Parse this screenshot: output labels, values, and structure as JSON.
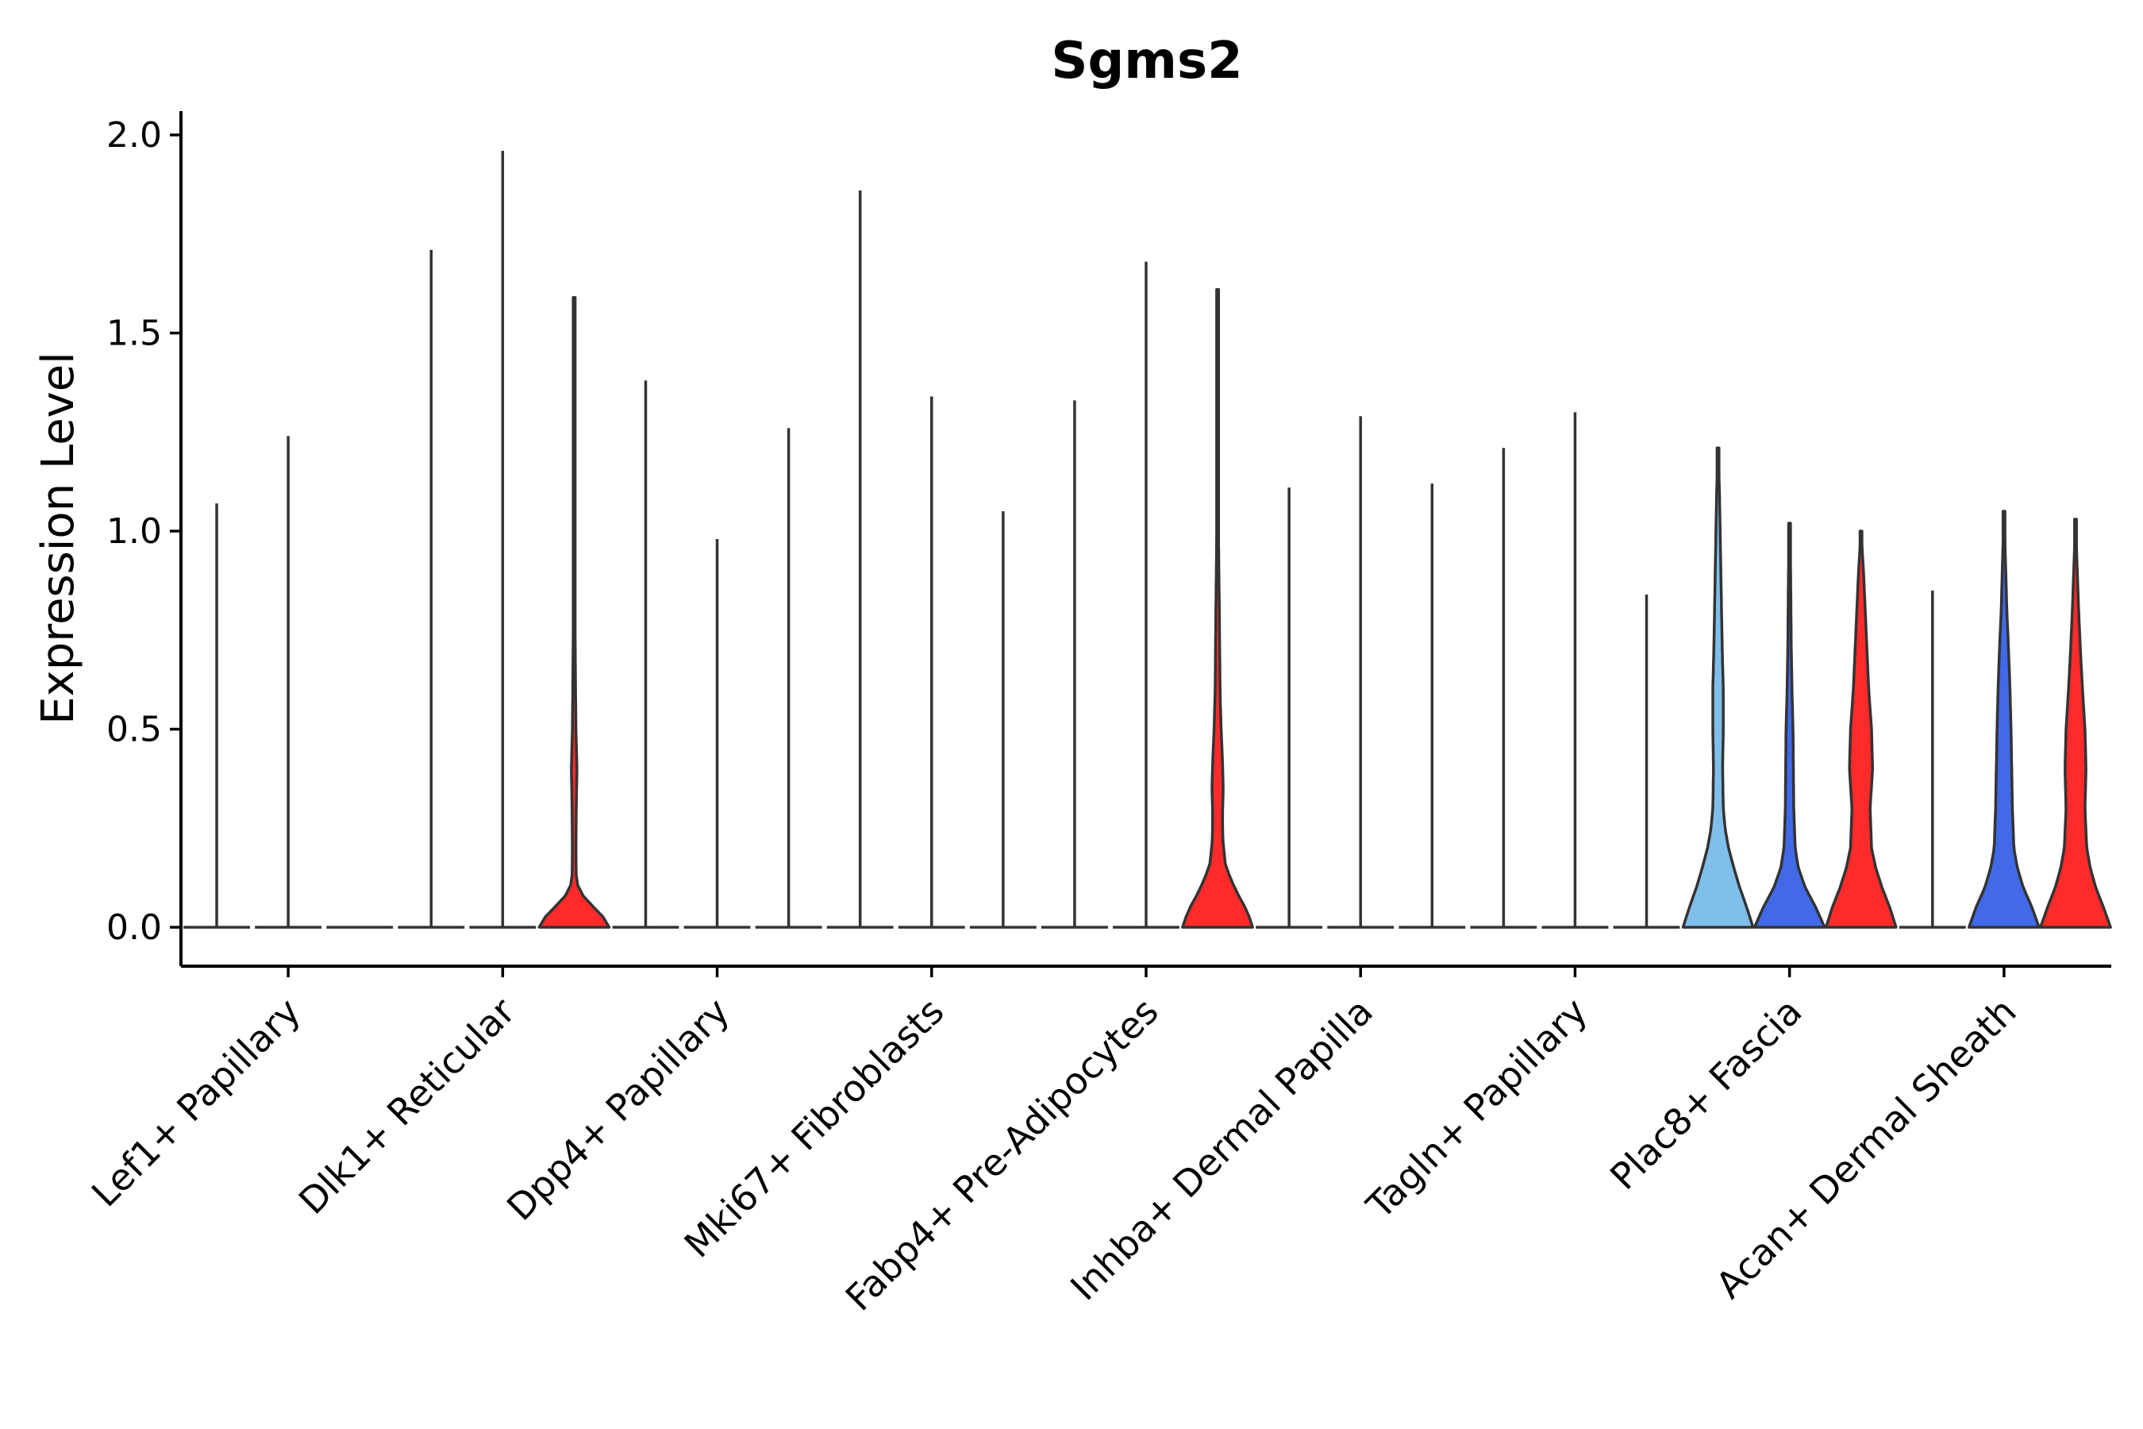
{
  "chart_data": {
    "type": "violin",
    "title": "Sgms2",
    "xlabel": "",
    "ylabel": "Expression Level",
    "ylim": [
      -0.1,
      2.06
    ],
    "yticks": [
      0.0,
      0.5,
      1.0,
      1.5,
      2.0
    ],
    "ytick_labels": [
      "0.0",
      "0.5",
      "1.0",
      "1.5",
      "2.0"
    ],
    "grid": false,
    "legend": "none",
    "series_colors": {
      "a": "#7fbfea",
      "b": "#4169e8",
      "c": "#ff2a2a"
    },
    "categories": [
      {
        "label": "Lef1+ Papillary",
        "violins": [
          {
            "max": 1.07,
            "width": 0.55,
            "dens": [
              [
                0,
                1
              ]
            ],
            "fill": null
          },
          {
            "max": 1.24,
            "width": 0.55,
            "dens": [
              [
                0,
                1
              ]
            ],
            "fill": null
          },
          {
            "max": 0.0,
            "width": 0.55,
            "dens": [
              [
                0,
                1
              ]
            ],
            "fill": null
          }
        ]
      },
      {
        "label": "Dlk1+ Reticular",
        "violins": [
          {
            "max": 1.71,
            "width": 0.55,
            "dens": [
              [
                0,
                1
              ]
            ],
            "fill": null
          },
          {
            "max": 1.96,
            "width": 0.55,
            "dens": [
              [
                0,
                1
              ]
            ],
            "fill": null
          },
          {
            "max": 1.59,
            "width": 1.0,
            "dens": [
              [
                0,
                1
              ],
              [
                0.03,
                0.8
              ],
              [
                0.06,
                0.45
              ],
              [
                0.09,
                0.15
              ],
              [
                0.12,
                0.06
              ],
              [
                0.2,
                0.05
              ],
              [
                0.3,
                0.06
              ],
              [
                0.4,
                0.08
              ],
              [
                0.5,
                0.05
              ],
              [
                0.7,
                0.03
              ],
              [
                0.9,
                0.02
              ],
              [
                1.2,
                0.01
              ],
              [
                1.59,
                0
              ]
            ],
            "fill": "#ff2a2a"
          }
        ]
      },
      {
        "label": "Dpp4+ Papillary",
        "violins": [
          {
            "max": 1.38,
            "width": 0.55,
            "dens": [
              [
                0,
                1
              ]
            ],
            "fill": null
          },
          {
            "max": 0.98,
            "width": 0.55,
            "dens": [
              [
                0,
                1
              ]
            ],
            "fill": null
          },
          {
            "max": 1.26,
            "width": 0.55,
            "dens": [
              [
                0,
                1
              ]
            ],
            "fill": null
          }
        ]
      },
      {
        "label": "Mki67+ Fibroblasts",
        "violins": [
          {
            "max": 1.86,
            "width": 0.55,
            "dens": [
              [
                0,
                1
              ]
            ],
            "fill": null
          },
          {
            "max": 1.34,
            "width": 0.55,
            "dens": [
              [
                0,
                1
              ]
            ],
            "fill": null
          },
          {
            "max": 1.05,
            "width": 0.55,
            "dens": [
              [
                0,
                1
              ]
            ],
            "fill": null
          }
        ]
      },
      {
        "label": "Fabp4+ Pre-Adipocytes",
        "violins": [
          {
            "max": 1.33,
            "width": 0.55,
            "dens": [
              [
                0,
                1
              ]
            ],
            "fill": null
          },
          {
            "max": 1.68,
            "width": 0.55,
            "dens": [
              [
                0,
                1
              ]
            ],
            "fill": null
          },
          {
            "max": 1.61,
            "width": 1.0,
            "dens": [
              [
                0,
                1
              ],
              [
                0.04,
                0.85
              ],
              [
                0.08,
                0.6
              ],
              [
                0.12,
                0.38
              ],
              [
                0.16,
                0.22
              ],
              [
                0.22,
                0.15
              ],
              [
                0.28,
                0.14
              ],
              [
                0.35,
                0.16
              ],
              [
                0.42,
                0.14
              ],
              [
                0.5,
                0.1
              ],
              [
                0.6,
                0.07
              ],
              [
                0.8,
                0.05
              ],
              [
                0.95,
                0.03
              ],
              [
                1.2,
                0.01
              ],
              [
                1.61,
                0
              ]
            ],
            "fill": "#ff2a2a"
          }
        ]
      },
      {
        "label": "Inhba+ Dermal Papilla",
        "violins": [
          {
            "max": 1.11,
            "width": 0.55,
            "dens": [
              [
                0,
                1
              ]
            ],
            "fill": null
          },
          {
            "max": 1.29,
            "width": 0.55,
            "dens": [
              [
                0,
                1
              ]
            ],
            "fill": null
          },
          {
            "max": 1.12,
            "width": 0.55,
            "dens": [
              [
                0,
                1
              ]
            ],
            "fill": null
          }
        ]
      },
      {
        "label": "Tagln+ Papillary",
        "violins": [
          {
            "max": 1.21,
            "width": 0.55,
            "dens": [
              [
                0,
                1
              ]
            ],
            "fill": null
          },
          {
            "max": 1.3,
            "width": 0.55,
            "dens": [
              [
                0,
                1
              ]
            ],
            "fill": null
          },
          {
            "max": 0.84,
            "width": 0.55,
            "dens": [
              [
                0,
                1
              ]
            ],
            "fill": null
          }
        ]
      },
      {
        "label": "Plac8+ Fascia",
        "violins": [
          {
            "max": 1.21,
            "width": 1.0,
            "dens": [
              [
                0,
                1
              ],
              [
                0.05,
                0.82
              ],
              [
                0.1,
                0.62
              ],
              [
                0.15,
                0.45
              ],
              [
                0.2,
                0.3
              ],
              [
                0.25,
                0.2
              ],
              [
                0.3,
                0.15
              ],
              [
                0.4,
                0.13
              ],
              [
                0.5,
                0.15
              ],
              [
                0.6,
                0.15
              ],
              [
                0.7,
                0.12
              ],
              [
                0.8,
                0.1
              ],
              [
                0.9,
                0.08
              ],
              [
                1.0,
                0.06
              ],
              [
                1.1,
                0.04
              ],
              [
                1.21,
                0
              ]
            ],
            "fill": "#7fbfea"
          },
          {
            "max": 1.02,
            "width": 1.0,
            "dens": [
              [
                0,
                1
              ],
              [
                0.05,
                0.75
              ],
              [
                0.1,
                0.45
              ],
              [
                0.15,
                0.25
              ],
              [
                0.2,
                0.16
              ],
              [
                0.3,
                0.12
              ],
              [
                0.4,
                0.11
              ],
              [
                0.5,
                0.1
              ],
              [
                0.6,
                0.07
              ],
              [
                0.7,
                0.05
              ],
              [
                0.8,
                0.04
              ],
              [
                0.9,
                0.03
              ],
              [
                1.02,
                0
              ]
            ],
            "fill": "#4169e8"
          },
          {
            "max": 1.0,
            "width": 1.0,
            "dens": [
              [
                0,
                1
              ],
              [
                0.05,
                0.82
              ],
              [
                0.1,
                0.6
              ],
              [
                0.15,
                0.42
              ],
              [
                0.2,
                0.3
              ],
              [
                0.3,
                0.26
              ],
              [
                0.4,
                0.33
              ],
              [
                0.5,
                0.3
              ],
              [
                0.6,
                0.22
              ],
              [
                0.7,
                0.17
              ],
              [
                0.8,
                0.12
              ],
              [
                0.9,
                0.07
              ],
              [
                1.0,
                0
              ]
            ],
            "fill": "#ff2a2a"
          }
        ]
      },
      {
        "label": "Acan+ Dermal Sheath",
        "violins": [
          {
            "max": 0.85,
            "width": 0.55,
            "dens": [
              [
                0,
                1
              ]
            ],
            "fill": null
          },
          {
            "max": 1.05,
            "width": 1.0,
            "dens": [
              [
                0,
                1
              ],
              [
                0.05,
                0.8
              ],
              [
                0.1,
                0.55
              ],
              [
                0.15,
                0.38
              ],
              [
                0.2,
                0.28
              ],
              [
                0.3,
                0.24
              ],
              [
                0.4,
                0.22
              ],
              [
                0.5,
                0.2
              ],
              [
                0.6,
                0.17
              ],
              [
                0.7,
                0.13
              ],
              [
                0.8,
                0.08
              ],
              [
                0.9,
                0.05
              ],
              [
                1.05,
                0
              ]
            ],
            "fill": "#4169e8"
          },
          {
            "max": 1.03,
            "width": 1.0,
            "dens": [
              [
                0,
                1
              ],
              [
                0.05,
                0.8
              ],
              [
                0.1,
                0.58
              ],
              [
                0.15,
                0.42
              ],
              [
                0.2,
                0.32
              ],
              [
                0.3,
                0.27
              ],
              [
                0.4,
                0.3
              ],
              [
                0.5,
                0.27
              ],
              [
                0.6,
                0.2
              ],
              [
                0.7,
                0.14
              ],
              [
                0.8,
                0.09
              ],
              [
                0.9,
                0.05
              ],
              [
                1.03,
                0
              ]
            ],
            "fill": "#ff2a2a"
          }
        ]
      }
    ]
  }
}
